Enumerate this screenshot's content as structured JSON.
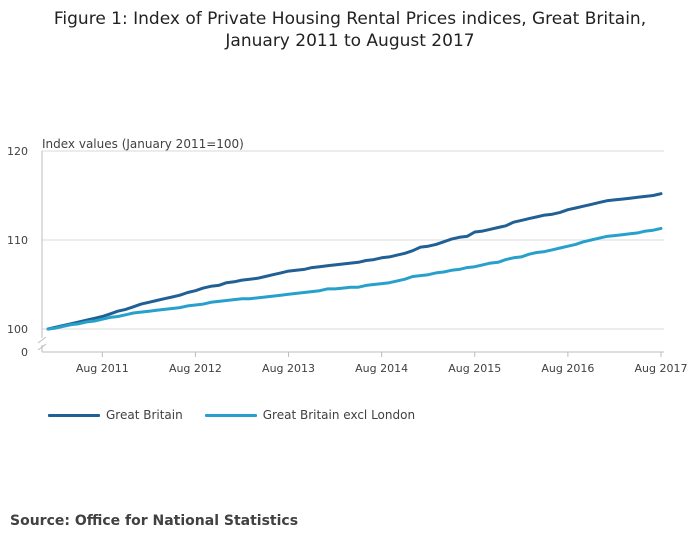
{
  "page": {
    "title_line1": "Figure 1: Index of Private Housing Rental Prices indices, Great Britain,",
    "title_line2": "January 2011 to August 2017",
    "source": "Source: Office for National Statistics"
  },
  "colors": {
    "great_britain": "#206095",
    "gb_excl_london": "#27a0cc",
    "grid": "#d9d9d9",
    "axis": "#bcbcbc"
  },
  "chart_data": {
    "type": "line",
    "ylabel": "Index values (January 2011=100)",
    "ylim": [
      100,
      120
    ],
    "y_break_label": "0",
    "y_ticks": [
      100,
      110,
      120
    ],
    "x_start": "2011-01",
    "x_end": "2017-08",
    "x_ticks": [
      "Aug 2011",
      "Aug 2012",
      "Aug 2013",
      "Aug 2014",
      "Aug 2015",
      "Aug 2016",
      "Aug 2017"
    ],
    "grid": true,
    "legend_position": "bottom-left",
    "series": [
      {
        "name": "Great Britain",
        "color": "#206095",
        "values": [
          100.0,
          100.2,
          100.4,
          100.6,
          100.8,
          101.0,
          101.2,
          101.4,
          101.7,
          102.0,
          102.2,
          102.5,
          102.8,
          103.0,
          103.2,
          103.4,
          103.6,
          103.8,
          104.1,
          104.3,
          104.6,
          104.8,
          104.9,
          105.2,
          105.3,
          105.5,
          105.6,
          105.7,
          105.9,
          106.1,
          106.3,
          106.5,
          106.6,
          106.7,
          106.9,
          107.0,
          107.1,
          107.2,
          107.3,
          107.4,
          107.5,
          107.7,
          107.8,
          108.0,
          108.1,
          108.3,
          108.5,
          108.8,
          109.2,
          109.3,
          109.5,
          109.8,
          110.1,
          110.3,
          110.4,
          110.9,
          111.0,
          111.2,
          111.4,
          111.6,
          112.0,
          112.2,
          112.4,
          112.6,
          112.8,
          112.9,
          113.1,
          113.4,
          113.6,
          113.8,
          114.0,
          114.2,
          114.4,
          114.5,
          114.6,
          114.7,
          114.8,
          114.9,
          115.0,
          115.2
        ]
      },
      {
        "name": "Great Britain excl London",
        "color": "#27a0cc",
        "values": [
          100.0,
          100.1,
          100.3,
          100.5,
          100.6,
          100.8,
          100.9,
          101.1,
          101.3,
          101.4,
          101.6,
          101.8,
          101.9,
          102.0,
          102.1,
          102.2,
          102.3,
          102.4,
          102.6,
          102.7,
          102.8,
          103.0,
          103.1,
          103.2,
          103.3,
          103.4,
          103.4,
          103.5,
          103.6,
          103.7,
          103.8,
          103.9,
          104.0,
          104.1,
          104.2,
          104.3,
          104.5,
          104.5,
          104.6,
          104.7,
          104.7,
          104.9,
          105.0,
          105.1,
          105.2,
          105.4,
          105.6,
          105.9,
          106.0,
          106.1,
          106.3,
          106.4,
          106.6,
          106.7,
          106.9,
          107.0,
          107.2,
          107.4,
          107.5,
          107.8,
          108.0,
          108.1,
          108.4,
          108.6,
          108.7,
          108.9,
          109.1,
          109.3,
          109.5,
          109.8,
          110.0,
          110.2,
          110.4,
          110.5,
          110.6,
          110.7,
          110.8,
          111.0,
          111.1,
          111.3
        ]
      }
    ]
  }
}
